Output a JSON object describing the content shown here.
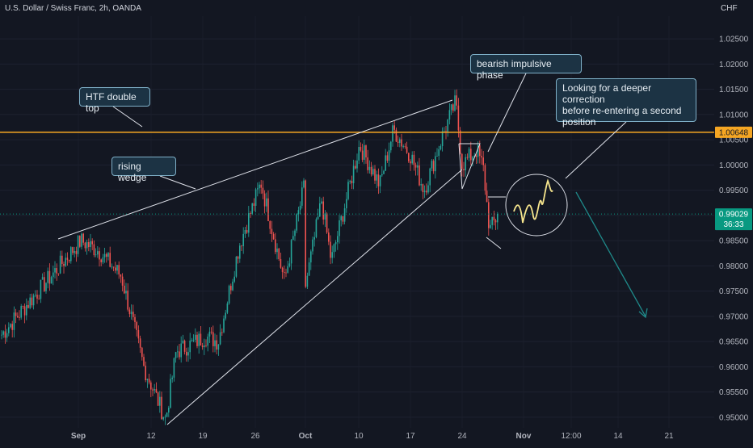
{
  "header": {
    "symbol": "U.S. Dollar / Swiss Franc, 2h, OANDA",
    "currency": "CHF"
  },
  "colors": {
    "background": "#131722",
    "up": "#26a69a",
    "down": "#ef5350",
    "level_line": "#f5a623",
    "current_price": "#089981",
    "annotation": "#e0e3eb",
    "arrow": "#1f8a8a",
    "zigzag": "#f6e58d"
  },
  "annotations": {
    "double_top": "HTF double top",
    "rising_wedge": "rising wedge",
    "impulsive": "bearish impulsive phase",
    "correction": "Looking for a deeper correction\nbefore re-entering a second\nposition"
  },
  "chart_data": {
    "type": "candlestick",
    "symbol": "USDCHF",
    "timeframe": "2h",
    "x_ticks": [
      "Sep",
      "12",
      "19",
      "26",
      "Oct",
      "10",
      "17",
      "24",
      "Nov",
      "12:00",
      "14",
      "21"
    ],
    "y_ticks": [
      "1.02500",
      "1.02000",
      "1.01500",
      "1.01000",
      "1.00500",
      "1.00000",
      "0.99500",
      "0.99000",
      "0.98500",
      "0.98000",
      "0.97500",
      "0.97000",
      "0.96500",
      "0.96000",
      "0.95500",
      "0.95000"
    ],
    "ylim": [
      0.9495,
      1.0279
    ],
    "horizontal_level": {
      "label": "1.00648",
      "value": 1.00648
    },
    "current_price": {
      "label": "0.99029",
      "value": 0.99029,
      "countdown": "36:33"
    },
    "price_path": [
      {
        "x": "Sep",
        "close": 0.966
      },
      {
        "x": "Sep 2",
        "close": 0.985
      },
      {
        "x": "Sep 5",
        "close": 0.983
      },
      {
        "x": "Sep 8",
        "close": 0.978
      },
      {
        "x": "12",
        "close": 0.96
      },
      {
        "x": "Sep 13",
        "close": 0.9495
      },
      {
        "x": "Sep 15",
        "close": 0.963
      },
      {
        "x": "19",
        "close": 0.966
      },
      {
        "x": "Sep 21",
        "close": 0.965
      },
      {
        "x": "Sep 22",
        "close": 0.984
      },
      {
        "x": "Sep 24",
        "close": 0.9965
      },
      {
        "x": "26",
        "close": 0.977
      },
      {
        "x": "Sep 29",
        "close": 0.997
      },
      {
        "x": "Oct",
        "close": 0.976
      },
      {
        "x": "Oct 4",
        "close": 0.993
      },
      {
        "x": "Oct 6",
        "close": 0.981
      },
      {
        "x": "10",
        "close": 1.004
      },
      {
        "x": "Oct 13",
        "close": 0.996
      },
      {
        "x": "Oct 14",
        "close": 1.007
      },
      {
        "x": "17",
        "close": 1.002
      },
      {
        "x": "Oct 19",
        "close": 0.995
      },
      {
        "x": "Oct 21",
        "close": 1.006
      },
      {
        "x": "Oct 22",
        "close": 1.0125
      },
      {
        "x": "24",
        "close": 1.0
      },
      {
        "x": "Oct 25",
        "close": 1.003
      },
      {
        "x": "Oct 26",
        "close": 0.9995
      },
      {
        "x": "Oct 27",
        "close": 0.987
      },
      {
        "x": "Oct 28",
        "close": 0.99029
      }
    ]
  }
}
